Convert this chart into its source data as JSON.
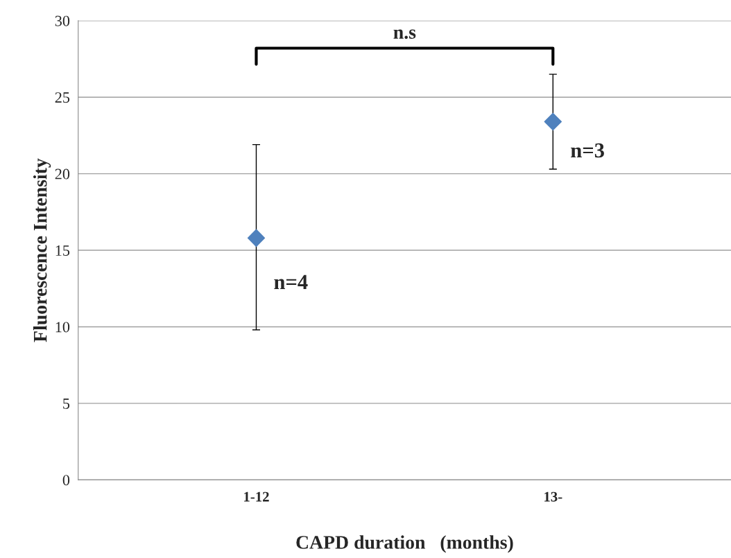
{
  "chart_data": {
    "type": "scatter",
    "xlabel": "CAPD duration   (months)",
    "ylabel": "Fluorescence Intensity",
    "categories": [
      "1-12",
      "13-"
    ],
    "series": [
      {
        "color": "#4f81bd",
        "values": [
          15.8,
          23.4
        ],
        "errors": [
          [
            9.8,
            21.9
          ],
          [
            20.3,
            26.5
          ]
        ]
      }
    ],
    "marker": "diamond",
    "ylim": [
      0,
      30
    ],
    "yticks": [
      0,
      5,
      10,
      15,
      20,
      25,
      30
    ],
    "grid": "y",
    "annotations": [
      "n.s",
      {
        "text": "n=4",
        "x": "1-12",
        "y": 12.8
      },
      {
        "text": "n=3",
        "x": "13-",
        "y": 21.4
      }
    ]
  }
}
